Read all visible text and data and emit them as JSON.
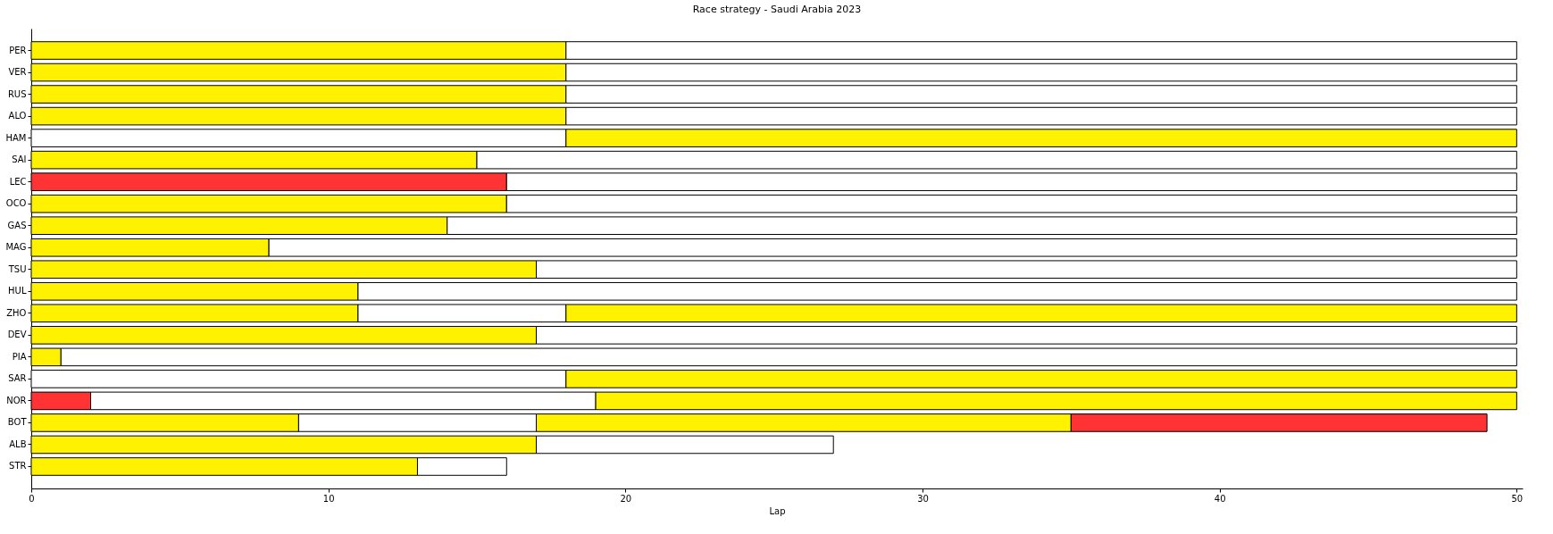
{
  "chart_data": {
    "type": "bar",
    "title": "Race strategy - Saudi Arabia 2023",
    "xlabel": "Lap",
    "orientation": "horizontal",
    "stacked": true,
    "grid": false,
    "xlim": [
      0,
      50.2
    ],
    "xticks": [
      0,
      10,
      20,
      30,
      40,
      50
    ],
    "categories": [
      "PER",
      "VER",
      "RUS",
      "ALO",
      "HAM",
      "SAI",
      "LEC",
      "OCO",
      "GAS",
      "MAG",
      "TSU",
      "HUL",
      "ZHO",
      "DEV",
      "PIA",
      "SAR",
      "NOR",
      "BOT",
      "ALB",
      "STR"
    ],
    "series": [
      {
        "values": [
          18,
          18,
          18,
          18,
          18,
          15,
          16,
          16,
          14,
          8,
          17,
          11,
          11,
          17,
          1,
          18,
          2,
          9,
          17,
          13
        ],
        "colors": [
          "#fff200",
          "#fff200",
          "#fff200",
          "#fff200",
          "#ffffff",
          "#fff200",
          "#ff3333",
          "#fff200",
          "#fff200",
          "#fff200",
          "#fff200",
          "#fff200",
          "#fff200",
          "#fff200",
          "#fff200",
          "#ffffff",
          "#ff3333",
          "#fff200",
          "#fff200",
          "#fff200"
        ]
      },
      {
        "values": [
          32,
          32,
          32,
          32,
          32,
          35,
          34,
          34,
          36,
          42,
          33,
          39,
          7,
          33,
          49,
          32,
          17,
          8,
          10,
          3
        ],
        "colors": [
          "#ffffff",
          "#ffffff",
          "#ffffff",
          "#ffffff",
          "#fff200",
          "#ffffff",
          "#ffffff",
          "#ffffff",
          "#ffffff",
          "#ffffff",
          "#ffffff",
          "#ffffff",
          "#ffffff",
          "#ffffff",
          "#ffffff",
          "#fff200",
          "#ffffff",
          "#ffffff",
          "#ffffff",
          "#ffffff"
        ]
      },
      {
        "values": [
          null,
          null,
          null,
          null,
          null,
          null,
          null,
          null,
          null,
          null,
          null,
          null,
          32,
          null,
          null,
          null,
          31,
          18,
          null,
          null
        ],
        "colors": [
          null,
          null,
          null,
          null,
          null,
          null,
          null,
          null,
          null,
          null,
          null,
          null,
          "#fff200",
          null,
          null,
          null,
          "#fff200",
          "#fff200",
          null,
          null
        ]
      },
      {
        "values": [
          null,
          null,
          null,
          null,
          null,
          null,
          null,
          null,
          null,
          null,
          null,
          null,
          null,
          null,
          null,
          null,
          null,
          14,
          null,
          null
        ],
        "colors": [
          null,
          null,
          null,
          null,
          null,
          null,
          null,
          null,
          null,
          null,
          null,
          null,
          null,
          null,
          null,
          null,
          null,
          "#ff3333",
          null,
          null
        ]
      }
    ]
  }
}
